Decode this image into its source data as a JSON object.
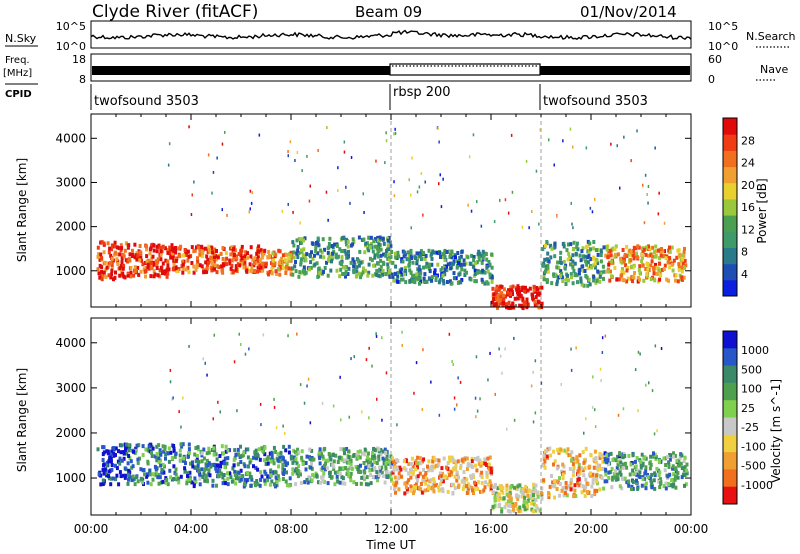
{
  "header": {
    "station": "Clyde River (fitACF)",
    "beam": "Beam 09",
    "date": "01/Nov/2014"
  },
  "panels": {
    "nsky": {
      "label": "N.Sky",
      "ticks": [
        "10^5",
        "10^0"
      ],
      "right_ticks": [
        "10^5",
        "10^0"
      ],
      "right_label": "N.Search"
    },
    "freq": {
      "label_top": "Freq.",
      "label_unit": "[MHz]",
      "ticks": [
        "18",
        "8"
      ],
      "right_ticks": [
        "60",
        "0"
      ],
      "right_label": "Nave"
    },
    "cpid": {
      "label": "CPID",
      "segments": [
        {
          "name": "twofsound 3503",
          "start": 0,
          "end": 12
        },
        {
          "name": "rbsp 200",
          "start": 12,
          "end": 18
        },
        {
          "name": "twofsound 3503",
          "start": 18,
          "end": 24
        }
      ]
    }
  },
  "chart_data": [
    {
      "type": "heatmap",
      "title": "Power",
      "ylabel": "Slant Range [km]",
      "ylim": [
        180,
        4550
      ],
      "yticks": [
        1000,
        2000,
        3000,
        4000
      ],
      "colorbar_label": "Power [dB]",
      "colorbar_ticks": [
        "4",
        "8",
        "12",
        "16",
        "20",
        "24",
        "28"
      ],
      "colors": [
        "#0a1fe0",
        "#1e4db4",
        "#2b7a8a",
        "#3f9a6a",
        "#4aa050",
        "#9ac83c",
        "#e8d030",
        "#f0a030",
        "#f07020",
        "#f03c14",
        "#e00a0a"
      ],
      "scatter_regions": [
        {
          "t": [
            0.2,
            1.4
          ],
          "r": [
            850,
            1700
          ],
          "level": 0.88
        },
        {
          "t": [
            1.4,
            3.2
          ],
          "r": [
            900,
            1650
          ],
          "level": 0.9
        },
        {
          "t": [
            3.2,
            7.0
          ],
          "r": [
            1000,
            1600
          ],
          "level": 0.84
        },
        {
          "t": [
            7.0,
            8.0
          ],
          "r": [
            950,
            1500
          ],
          "level": 0.72
        },
        {
          "t": [
            8.0,
            12.0
          ],
          "r": [
            900,
            1800
          ],
          "level": 0.32
        },
        {
          "t": [
            12.0,
            16.0
          ],
          "r": [
            750,
            1500
          ],
          "level": 0.28
        },
        {
          "t": [
            16.0,
            18.0
          ],
          "r": [
            200,
            700
          ],
          "level": 0.95
        },
        {
          "t": [
            18.0,
            20.5
          ],
          "r": [
            700,
            1700
          ],
          "level": 0.35
        },
        {
          "t": [
            20.5,
            23.8
          ],
          "r": [
            800,
            1600
          ],
          "level": 0.7
        }
      ]
    },
    {
      "type": "heatmap",
      "title": "Velocity",
      "xlabel": "Time UT",
      "ylabel": "Slant Range [km]",
      "ylim": [
        180,
        4550
      ],
      "yticks": [
        1000,
        2000,
        3000,
        4000
      ],
      "xticks": [
        "00:00",
        "04:00",
        "08:00",
        "12:00",
        "16:00",
        "20:00",
        "00:00"
      ],
      "xlim_hours": [
        0,
        24
      ],
      "colorbar_label": "Velocity [m s^-1]",
      "colorbar_ticks": [
        "1000",
        "500",
        "100",
        "25",
        "-25",
        "-100",
        "-500",
        "-1000"
      ],
      "colors": [
        "#1010d0",
        "#2858c8",
        "#3a8a6a",
        "#4ea04e",
        "#7ed04e",
        "#c8c8c8",
        "#f0d040",
        "#f0a030",
        "#f07020",
        "#e81010"
      ],
      "scatter_regions": [
        {
          "t": [
            0.2,
            1.4
          ],
          "r": [
            900,
            1800
          ],
          "level": 0.06
        },
        {
          "t": [
            1.4,
            4.0
          ],
          "r": [
            900,
            1800
          ],
          "level": 0.24
        },
        {
          "t": [
            4.0,
            8.0
          ],
          "r": [
            850,
            1750
          ],
          "level": 0.28
        },
        {
          "t": [
            8.0,
            12.0
          ],
          "r": [
            900,
            1700
          ],
          "level": 0.35
        },
        {
          "t": [
            12.0,
            16.0
          ],
          "r": [
            700,
            1500
          ],
          "level": 0.72
        },
        {
          "t": [
            16.0,
            18.0
          ],
          "r": [
            300,
            900
          ],
          "level": 0.55
        },
        {
          "t": [
            18.0,
            20.5
          ],
          "r": [
            600,
            1700
          ],
          "level": 0.7
        },
        {
          "t": [
            20.5,
            23.8
          ],
          "r": [
            800,
            1600
          ],
          "level": 0.32
        }
      ]
    }
  ]
}
